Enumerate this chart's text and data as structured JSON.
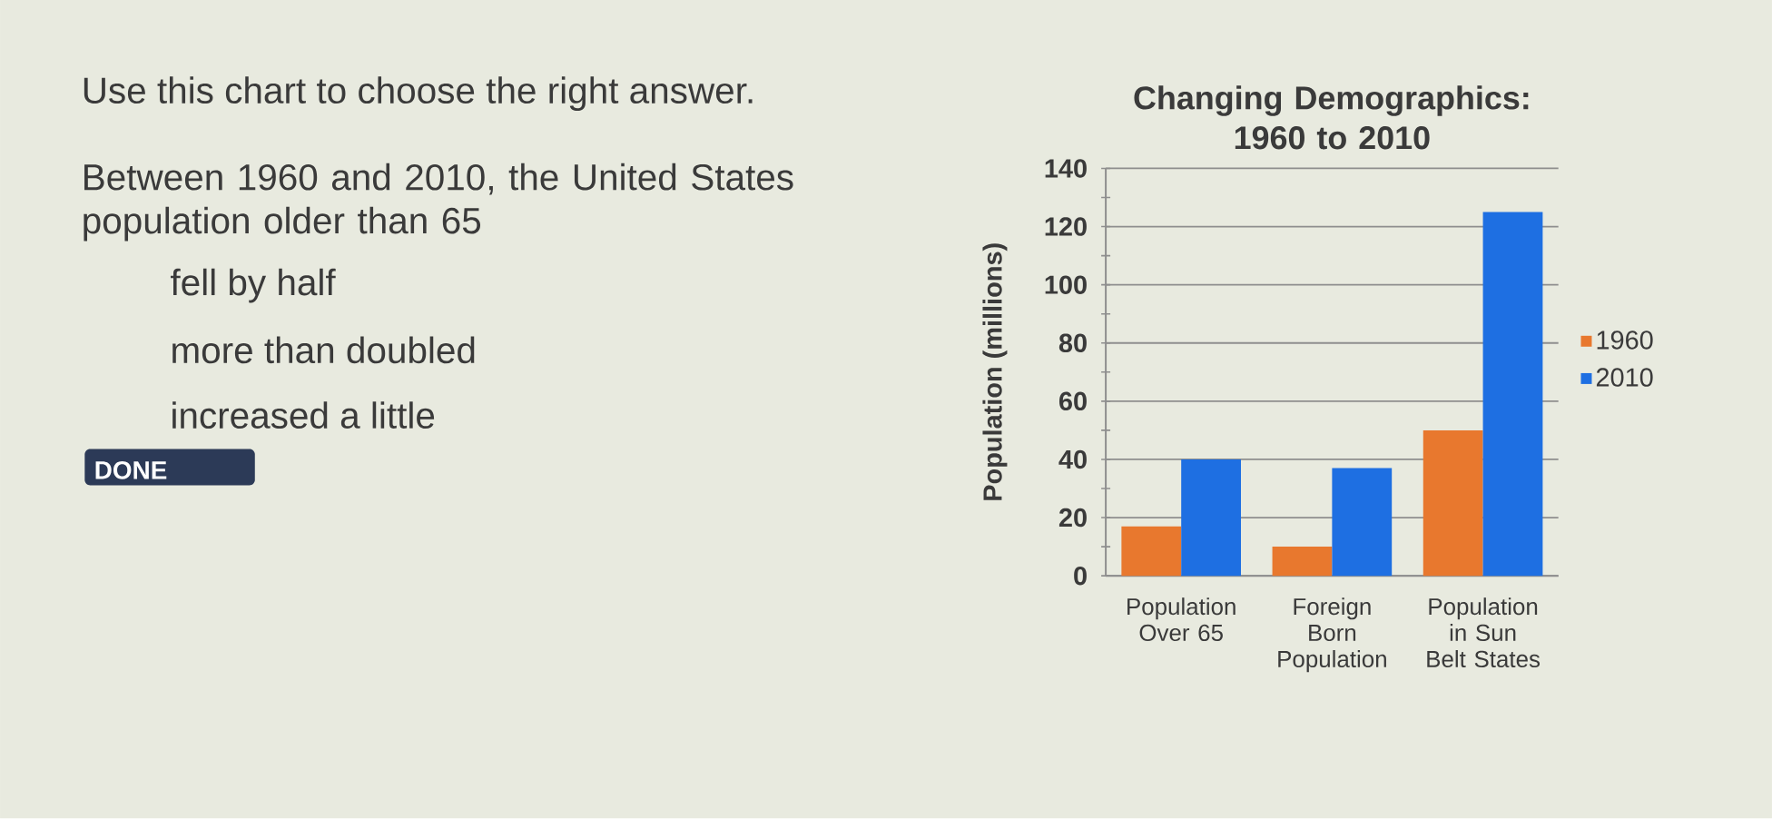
{
  "chart_data": {
    "type": "bar",
    "title": "Changing Demographics: 1960 to 2010",
    "ylabel": "Population (millions)",
    "categories": [
      "Population Over 65",
      "Foreign Born Population",
      "Population in Sun Belt States"
    ],
    "series": [
      {
        "name": "1960",
        "color": "#E8782E",
        "values": [
          17,
          10,
          50
        ]
      },
      {
        "name": "2010",
        "color": "#1E6FE2",
        "values": [
          40,
          37,
          125
        ]
      }
    ],
    "ylim": [
      0,
      140
    ],
    "yticks": [
      0,
      20,
      40,
      60,
      80,
      100,
      120,
      140
    ],
    "grid": "y",
    "legend": "right",
    "annotations": [
      "Use this chart to choose the right answer.",
      "Between 1960 and 2010, the United States population older than 65",
      "fell by half",
      "more than doubled",
      "increased a little",
      "DONE"
    ]
  }
}
